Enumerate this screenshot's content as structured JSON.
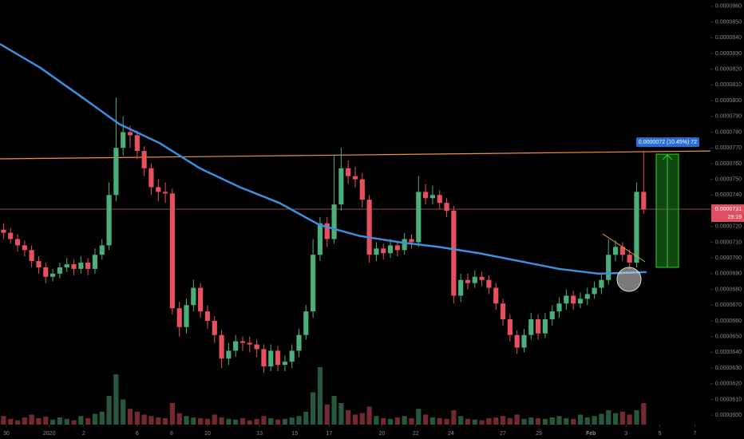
{
  "chart_data": {
    "type": "candlestick",
    "up_color": "#4caf7a",
    "down_color": "#e8505e",
    "xlim": [
      0,
      101
    ],
    "ylim": [
      5.94e-05,
      8.64e-05
    ],
    "xticks": [
      {
        "value": 0.9,
        "label": "30"
      },
      {
        "value": 7.0,
        "label": "2020"
      },
      {
        "value": 11.9,
        "label": "2"
      },
      {
        "value": 19.5,
        "label": "6"
      },
      {
        "value": 24.4,
        "label": "8"
      },
      {
        "value": 29.5,
        "label": "10"
      },
      {
        "value": 36.9,
        "label": "13"
      },
      {
        "value": 41.9,
        "label": "15"
      },
      {
        "value": 46.8,
        "label": "17"
      },
      {
        "value": 54.3,
        "label": "20"
      },
      {
        "value": 59.1,
        "label": "22"
      },
      {
        "value": 64.1,
        "label": "24"
      },
      {
        "value": 71.5,
        "label": "27"
      },
      {
        "value": 76.6,
        "label": "29"
      },
      {
        "value": 84.0,
        "label": "Feb"
      },
      {
        "value": 89.0,
        "label": "3"
      },
      {
        "value": 93.8,
        "label": "5"
      },
      {
        "value": 98.8,
        "label": "7"
      }
    ],
    "yticks": [
      {
        "value": 6e-05,
        "label": "0.0000600"
      },
      {
        "value": 6.1e-05,
        "label": "0.0000610"
      },
      {
        "value": 6.2e-05,
        "label": "0.0000620"
      },
      {
        "value": 6.3e-05,
        "label": "0.0000630"
      },
      {
        "value": 6.4e-05,
        "label": "0.0000640"
      },
      {
        "value": 6.5e-05,
        "label": "0.0000650"
      },
      {
        "value": 6.6e-05,
        "label": "0.0000660"
      },
      {
        "value": 6.7e-05,
        "label": "0.0000670"
      },
      {
        "value": 6.8e-05,
        "label": "0.0000680"
      },
      {
        "value": 6.9e-05,
        "label": "0.0000690"
      },
      {
        "value": 7e-05,
        "label": "0.0000700"
      },
      {
        "value": 7.1e-05,
        "label": "0.0000710"
      },
      {
        "value": 7.2e-05,
        "label": "0.0000720"
      },
      {
        "value": 7.3e-05,
        "label": "0.0000730"
      },
      {
        "value": 7.4e-05,
        "label": "0.0000740"
      },
      {
        "value": 7.5e-05,
        "label": "0.0000750"
      },
      {
        "value": 7.6e-05,
        "label": "0.0000760"
      },
      {
        "value": 7.7e-05,
        "label": "0.0000770"
      },
      {
        "value": 7.8e-05,
        "label": "0.0000780"
      },
      {
        "value": 7.9e-05,
        "label": "0.0000790"
      },
      {
        "value": 8e-05,
        "label": "0.0000800"
      },
      {
        "value": 8.1e-05,
        "label": "0.0000810"
      },
      {
        "value": 8.2e-05,
        "label": "0.0000820"
      },
      {
        "value": 8.3e-05,
        "label": "0.0000830"
      },
      {
        "value": 8.4e-05,
        "label": "0.0000840"
      },
      {
        "value": 8.5e-05,
        "label": "0.0000850"
      },
      {
        "value": 8.6e-05,
        "label": "0.0000860"
      }
    ],
    "candles": {
      "open": [
        7.18e-05,
        7.16e-05,
        7.12e-05,
        7.08e-05,
        7.05e-05,
        6.98e-05,
        6.94e-05,
        6.88e-05,
        6.9e-05,
        6.94e-05,
        6.96e-05,
        6.93e-05,
        6.97e-05,
        6.93e-05,
        7.02e-05,
        7.08e-05,
        7.4e-05,
        7.7e-05,
        7.8e-05,
        7.78e-05,
        7.68e-05,
        7.57e-05,
        7.45e-05,
        7.42e-05,
        7.41e-05,
        6.68e-05,
        6.56e-05,
        6.7e-05,
        6.81e-05,
        6.66e-05,
        6.6e-05,
        6.51e-05,
        6.36e-05,
        6.41e-05,
        6.47e-05,
        6.46e-05,
        6.45e-05,
        6.42e-05,
        6.31e-05,
        6.41e-05,
        6.32e-05,
        6.34e-05,
        6.41e-05,
        6.51e-05,
        6.66e-05,
        7.02e-05,
        7.22e-05,
        7.12e-05,
        7.34e-05,
        7.57e-05,
        7.52e-05,
        7.5e-05,
        7.37e-05,
        7.02e-05,
        7.06e-05,
        7.03e-05,
        7.08e-05,
        7.05e-05,
        7.12e-05,
        7.1e-05,
        7.42e-05,
        7.38e-05,
        7.4e-05,
        7.35e-05,
        7.3e-05,
        6.76e-05,
        6.86e-05,
        6.84e-05,
        6.88e-05,
        6.86e-05,
        6.81e-05,
        6.71e-05,
        6.61e-05,
        6.51e-05,
        6.43e-05,
        6.51e-05,
        6.61e-05,
        6.52e-05,
        6.61e-05,
        6.66e-05,
        6.71e-05,
        6.76e-05,
        6.71e-05,
        6.74e-05,
        6.77e-05,
        6.81e-05,
        6.86e-05,
        7.02e-05,
        7.07e-05,
        7.02e-05,
        6.97e-05,
        7.42e-05
      ],
      "high": [
        7.22e-05,
        7.19e-05,
        7.15e-05,
        7.11e-05,
        7.08e-05,
        7.01e-05,
        6.97e-05,
        6.93e-05,
        6.97e-05,
        7e-05,
        6.99e-05,
        7.01e-05,
        7e-05,
        7.06e-05,
        7.12e-05,
        7.48e-05,
        8.02e-05,
        7.9e-05,
        7.84e-05,
        7.81e-05,
        7.71e-05,
        7.6e-05,
        7.5e-05,
        7.48e-05,
        7.44e-05,
        6.72e-05,
        6.74e-05,
        6.86e-05,
        6.84e-05,
        6.7e-05,
        6.63e-05,
        6.54e-05,
        6.46e-05,
        6.51e-05,
        6.5e-05,
        6.5e-05,
        6.48e-05,
        6.45e-05,
        6.45e-05,
        6.44e-05,
        6.38e-05,
        6.45e-05,
        6.55e-05,
        6.7e-05,
        7.12e-05,
        7.26e-05,
        7.26e-05,
        7.65e-05,
        7.7e-05,
        7.62e-05,
        7.58e-05,
        7.54e-05,
        7.4e-05,
        7.1e-05,
        7.09e-05,
        7.12e-05,
        7.11e-05,
        7.16e-05,
        7.15e-05,
        7.52e-05,
        7.47e-05,
        7.46e-05,
        7.43e-05,
        7.38e-05,
        7.33e-05,
        6.9e-05,
        6.9e-05,
        6.92e-05,
        6.91e-05,
        6.89e-05,
        6.84e-05,
        6.74e-05,
        6.64e-05,
        6.54e-05,
        6.55e-05,
        6.65e-05,
        6.64e-05,
        6.65e-05,
        6.7e-05,
        6.75e-05,
        6.8e-05,
        6.79e-05,
        6.78e-05,
        6.81e-05,
        6.85e-05,
        6.9e-05,
        7.12e-05,
        7.11e-05,
        7.1e-05,
        7.05e-05,
        7.48e-05,
        7.68e-05
      ],
      "low": [
        7.12e-05,
        7.09e-05,
        7.04e-05,
        7.01e-05,
        6.94e-05,
        6.9e-05,
        6.84e-05,
        6.85e-05,
        6.87e-05,
        6.91e-05,
        6.89e-05,
        6.9e-05,
        6.89e-05,
        6.9e-05,
        6.99e-05,
        7.05e-05,
        7.36e-05,
        7.65e-05,
        7.7e-05,
        7.63e-05,
        7.52e-05,
        7.4e-05,
        7.36e-05,
        7.35e-05,
        6.64e-05,
        6.5e-05,
        6.52e-05,
        6.66e-05,
        6.62e-05,
        6.55e-05,
        6.46e-05,
        6.3e-05,
        6.32e-05,
        6.37e-05,
        6.41e-05,
        6.4e-05,
        6.37e-05,
        6.27e-05,
        6.28e-05,
        6.28e-05,
        6.28e-05,
        6.3e-05,
        6.37e-05,
        6.48e-05,
        6.62e-05,
        6.98e-05,
        7.07e-05,
        7.09e-05,
        7.3e-05,
        7.47e-05,
        7.45e-05,
        7.32e-05,
        6.97e-05,
        6.98e-05,
        6.99e-05,
        7e-05,
        7.01e-05,
        7.02e-05,
        7.06e-05,
        7.07e-05,
        7.34e-05,
        7.34e-05,
        7.31e-05,
        7.26e-05,
        6.71e-05,
        6.72e-05,
        6.8e-05,
        6.81e-05,
        6.82e-05,
        6.77e-05,
        6.67e-05,
        6.57e-05,
        6.47e-05,
        6.39e-05,
        6.4e-05,
        6.48e-05,
        6.48e-05,
        6.49e-05,
        6.57e-05,
        6.62e-05,
        6.67e-05,
        6.67e-05,
        6.68e-05,
        6.7e-05,
        6.74e-05,
        6.77e-05,
        6.83e-05,
        6.98e-05,
        6.98e-05,
        6.93e-05,
        6.94e-05,
        7.28e-05
      ],
      "close": [
        7.16e-05,
        7.12e-05,
        7.08e-05,
        7.05e-05,
        6.98e-05,
        6.94e-05,
        6.88e-05,
        6.9e-05,
        6.94e-05,
        6.96e-05,
        6.93e-05,
        6.97e-05,
        6.93e-05,
        7.02e-05,
        7.08e-05,
        7.4e-05,
        7.7e-05,
        7.8e-05,
        7.78e-05,
        7.68e-05,
        7.57e-05,
        7.45e-05,
        7.42e-05,
        7.41e-05,
        6.68e-05,
        6.56e-05,
        6.7e-05,
        6.81e-05,
        6.66e-05,
        6.6e-05,
        6.51e-05,
        6.36e-05,
        6.41e-05,
        6.47e-05,
        6.46e-05,
        6.45e-05,
        6.42e-05,
        6.31e-05,
        6.41e-05,
        6.32e-05,
        6.34e-05,
        6.41e-05,
        6.51e-05,
        6.66e-05,
        7.02e-05,
        7.22e-05,
        7.12e-05,
        7.34e-05,
        7.57e-05,
        7.52e-05,
        7.5e-05,
        7.37e-05,
        7.02e-05,
        7.06e-05,
        7.03e-05,
        7.08e-05,
        7.05e-05,
        7.12e-05,
        7.1e-05,
        7.42e-05,
        7.38e-05,
        7.4e-05,
        7.35e-05,
        7.3e-05,
        6.76e-05,
        6.86e-05,
        6.84e-05,
        6.88e-05,
        6.86e-05,
        6.81e-05,
        6.71e-05,
        6.61e-05,
        6.51e-05,
        6.43e-05,
        6.51e-05,
        6.61e-05,
        6.52e-05,
        6.61e-05,
        6.66e-05,
        6.71e-05,
        6.76e-05,
        6.71e-05,
        6.74e-05,
        6.77e-05,
        6.81e-05,
        6.86e-05,
        7.02e-05,
        7.07e-05,
        7.02e-05,
        6.97e-05,
        7.42e-05,
        7.31e-05
      ]
    },
    "volume": [
      12,
      8,
      6,
      10,
      14,
      9,
      11,
      7,
      10,
      8,
      6,
      12,
      9,
      15,
      18,
      40,
      70,
      35,
      22,
      18,
      14,
      12,
      10,
      9,
      30,
      16,
      12,
      10,
      9,
      8,
      14,
      10,
      8,
      7,
      9,
      6,
      8,
      12,
      9,
      7,
      8,
      10,
      12,
      18,
      45,
      80,
      28,
      40,
      30,
      20,
      14,
      16,
      25,
      12,
      9,
      8,
      10,
      12,
      9,
      22,
      14,
      10,
      9,
      8,
      20,
      12,
      8,
      7,
      6,
      9,
      10,
      12,
      9,
      14,
      8,
      10,
      9,
      8,
      10,
      12,
      9,
      8,
      14,
      10,
      12,
      15,
      20,
      16,
      18,
      14,
      20,
      30
    ],
    "volume_lim": [
      0,
      100
    ],
    "ma": {
      "color": "#3d8fe0",
      "x": [
        0,
        5.7,
        11.4,
        17.0,
        22.7,
        28.4,
        34.1,
        39.7,
        45.4,
        51.1,
        56.8,
        62.4,
        68.1,
        73.8,
        79.5,
        85.1,
        91.9
      ],
      "values": [
        8.36e-05,
        8.21e-05,
        8.03e-05,
        7.85e-05,
        7.73e-05,
        7.57e-05,
        7.45e-05,
        7.35e-05,
        7.21e-05,
        7.14e-05,
        7.1e-05,
        7.07e-05,
        7.03e-05,
        6.98e-05,
        6.93e-05,
        6.9e-05,
        6.91e-05
      ]
    },
    "resistance": {
      "color": "#f0923a",
      "x": [
        0,
        101
      ],
      "values": [
        7.63e-05,
        7.68e-05
      ]
    },
    "last_price": {
      "value": 7.31e-05,
      "label": "0.0000731"
    },
    "countdown": "29:19",
    "measure": {
      "low": 6.94e-05,
      "high": 7.66e-05,
      "label": "0.0000072 (10.45%) 72"
    }
  }
}
